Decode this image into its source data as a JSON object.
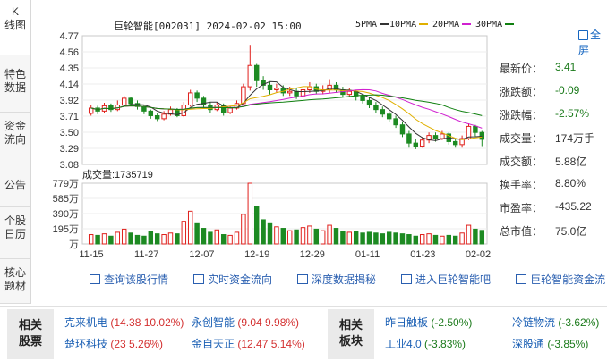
{
  "tabs": [
    {
      "label1": "K",
      "label2": "线图"
    },
    {
      "label1": "特色",
      "label2": "数据"
    },
    {
      "label1": "资金",
      "label2": "流向"
    },
    {
      "label1": "公告",
      "label2": ""
    },
    {
      "label1": "个股",
      "label2": "日历"
    },
    {
      "label1": "核心",
      "label2": "题材"
    }
  ],
  "header": {
    "title": "巨轮智能[002031] 2024-02-02 15:00",
    "fullscreen": "全屏"
  },
  "legend": [
    {
      "label": "5PMA",
      "color": "#333333"
    },
    {
      "label": "10PMA",
      "color": "#e0b000"
    },
    {
      "label": "20PMA",
      "color": "#d020d0"
    },
    {
      "label": "30PMA",
      "color": "#108010"
    }
  ],
  "volume_label": "成交量:1735719",
  "dates": [
    "11-15",
    "11-27",
    "12-07",
    "12-19",
    "12-29",
    "01-11",
    "01-23",
    "02-02"
  ],
  "price_axis": [
    "4.77",
    "4.56",
    "4.35",
    "4.14",
    "3.92",
    "3.71",
    "3.50",
    "3.29",
    "3.08"
  ],
  "vol_axis": [
    "779万",
    "585万",
    "390万",
    "195万",
    "万"
  ],
  "quote": [
    {
      "label": "最新价：",
      "value": "3.41",
      "cls": "down"
    },
    {
      "label": "涨跌额：",
      "value": "-0.09",
      "cls": "down"
    },
    {
      "label": "涨跌幅：",
      "value": "-2.57%",
      "cls": "down"
    },
    {
      "label": "成交量：",
      "value": "174万手",
      "cls": ""
    },
    {
      "label": "成交额：",
      "value": "5.88亿",
      "cls": ""
    },
    {
      "label": "换手率：",
      "value": "8.80%",
      "cls": ""
    },
    {
      "label": "市盈率：",
      "value": "-435.22",
      "cls": ""
    },
    {
      "label": "总市值：",
      "value": "75.0亿",
      "cls": ""
    }
  ],
  "links": [
    "查询该股行情",
    "实时资金流向",
    "深度数据揭秘",
    "进入巨轮智能吧",
    "巨轮智能资金流"
  ],
  "related_stocks": {
    "label1": "相关",
    "label2": "股票",
    "items": [
      {
        "name": "克来机电",
        "value": "(14.38 10.02%)"
      },
      {
        "name": "永创智能",
        "value": "(9.04 9.98%)"
      },
      {
        "name": "楚环科技",
        "value": "(23 5.26%)"
      },
      {
        "name": "金自天正",
        "value": "(12.47 5.14%)"
      }
    ]
  },
  "related_sectors": {
    "label1": "相关",
    "label2": "板块",
    "items": [
      {
        "name": "昨日触板",
        "value": "(-2.50%)"
      },
      {
        "name": "冷链物流",
        "value": "(-3.62%)"
      },
      {
        "name": "工业4.0",
        "value": "(-3.83%)"
      },
      {
        "name": "深股通",
        "value": "(-3.85%)"
      }
    ]
  },
  "chart_data": {
    "type": "candlestick",
    "ylim": [
      3.08,
      4.77
    ],
    "vol_max": 779,
    "candles": [
      [
        3.75,
        3.82,
        3.86,
        3.72,
        120
      ],
      [
        3.82,
        3.78,
        3.85,
        3.74,
        110
      ],
      [
        3.78,
        3.85,
        3.89,
        3.76,
        130
      ],
      [
        3.85,
        3.8,
        3.88,
        3.77,
        100
      ],
      [
        3.8,
        3.86,
        3.92,
        3.78,
        150
      ],
      [
        3.86,
        3.95,
        3.98,
        3.84,
        190
      ],
      [
        3.95,
        3.88,
        3.97,
        3.85,
        140
      ],
      [
        3.88,
        3.84,
        3.92,
        3.8,
        110
      ],
      [
        3.84,
        3.78,
        3.86,
        3.74,
        100
      ],
      [
        3.78,
        3.72,
        3.8,
        3.68,
        160
      ],
      [
        3.72,
        3.68,
        3.76,
        3.65,
        130
      ],
      [
        3.68,
        3.74,
        3.78,
        3.66,
        120
      ],
      [
        3.74,
        3.8,
        3.84,
        3.72,
        140
      ],
      [
        3.8,
        3.72,
        3.82,
        3.7,
        130
      ],
      [
        3.72,
        3.86,
        3.9,
        3.7,
        290
      ],
      [
        3.86,
        4.02,
        4.06,
        3.84,
        420
      ],
      [
        4.02,
        3.95,
        4.05,
        3.9,
        260
      ],
      [
        3.95,
        3.86,
        3.98,
        3.82,
        200
      ],
      [
        3.86,
        3.8,
        3.9,
        3.76,
        150
      ],
      [
        3.8,
        3.86,
        3.9,
        3.78,
        180
      ],
      [
        3.86,
        3.76,
        3.88,
        3.72,
        120
      ],
      [
        3.76,
        3.82,
        3.85,
        3.74,
        110
      ],
      [
        3.82,
        3.88,
        3.92,
        3.8,
        150
      ],
      [
        3.88,
        4.1,
        4.14,
        3.86,
        380
      ],
      [
        4.1,
        4.38,
        4.65,
        4.05,
        779
      ],
      [
        4.38,
        4.18,
        4.4,
        4.1,
        480
      ],
      [
        4.18,
        4.12,
        4.24,
        4.06,
        310
      ],
      [
        4.12,
        4.06,
        4.16,
        4.0,
        260
      ],
      [
        4.06,
        4.08,
        4.14,
        4.02,
        220
      ],
      [
        4.08,
        4.02,
        4.12,
        3.98,
        200
      ],
      [
        4.02,
        4.04,
        4.1,
        3.98,
        170
      ],
      [
        4.04,
        3.98,
        4.08,
        3.94,
        180
      ],
      [
        3.98,
        4.06,
        4.1,
        3.94,
        210
      ],
      [
        4.06,
        4.1,
        4.16,
        4.02,
        230
      ],
      [
        4.1,
        4.04,
        4.14,
        4.0,
        190
      ],
      [
        4.04,
        4.06,
        4.12,
        4.0,
        170
      ],
      [
        4.06,
        4.12,
        4.2,
        4.02,
        240
      ],
      [
        4.12,
        4.06,
        4.16,
        4.02,
        200
      ],
      [
        4.06,
        4.0,
        4.1,
        3.96,
        160
      ],
      [
        4.0,
        4.04,
        4.08,
        3.96,
        150
      ],
      [
        4.04,
        3.98,
        4.06,
        3.92,
        160
      ],
      [
        3.98,
        3.92,
        4.0,
        3.88,
        140
      ],
      [
        3.92,
        3.86,
        3.96,
        3.82,
        150
      ],
      [
        3.86,
        3.8,
        3.9,
        3.76,
        140
      ],
      [
        3.8,
        3.74,
        3.84,
        3.7,
        130
      ],
      [
        3.74,
        3.68,
        3.78,
        3.64,
        150
      ],
      [
        3.68,
        3.6,
        3.72,
        3.56,
        140
      ],
      [
        3.6,
        3.48,
        3.64,
        3.44,
        130
      ],
      [
        3.48,
        3.36,
        3.52,
        3.3,
        120
      ],
      [
        3.36,
        3.32,
        3.42,
        3.28,
        100
      ],
      [
        3.32,
        3.4,
        3.44,
        3.3,
        120
      ],
      [
        3.4,
        3.46,
        3.5,
        3.36,
        130
      ],
      [
        3.46,
        3.42,
        3.5,
        3.38,
        110
      ],
      [
        3.42,
        3.48,
        3.52,
        3.4,
        100
      ],
      [
        3.48,
        3.38,
        3.5,
        3.34,
        110
      ],
      [
        3.38,
        3.34,
        3.42,
        3.3,
        100
      ],
      [
        3.34,
        3.42,
        3.46,
        3.3,
        140
      ],
      [
        3.42,
        3.58,
        3.62,
        3.4,
        240
      ],
      [
        3.58,
        3.5,
        3.6,
        3.45,
        190
      ],
      [
        3.5,
        3.41,
        3.52,
        3.32,
        174
      ]
    ]
  }
}
